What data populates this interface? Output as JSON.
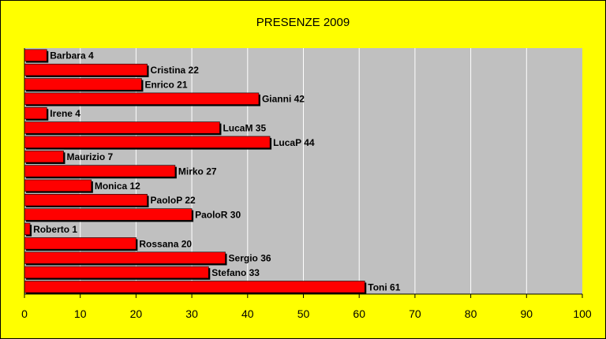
{
  "chart_data": {
    "type": "bar",
    "orientation": "horizontal",
    "title": "PRESENZE 2009",
    "xlabel": "",
    "ylabel": "",
    "xlim": [
      0,
      100
    ],
    "x_ticks": [
      "0",
      "10",
      "20",
      "30",
      "40",
      "50",
      "60",
      "70",
      "80",
      "90",
      "100"
    ],
    "grid": "vertical",
    "legend": "none",
    "categories": [
      "Barbara",
      "Cristina",
      "Enrico",
      "Gianni",
      "Irene",
      "LucaM",
      "LucaP",
      "Maurizio",
      "Mirko",
      "Monica",
      "PaoloP",
      "PaoloR",
      "Roberto",
      "Rossana",
      "Sergio",
      "Stefano",
      "Toni"
    ],
    "values": [
      4,
      22,
      21,
      42,
      4,
      35,
      44,
      7,
      27,
      12,
      22,
      30,
      1,
      20,
      36,
      33,
      61
    ],
    "data_labels": [
      "Barbara 4",
      "Cristina 22",
      "Enrico 21",
      "Gianni 42",
      "Irene 4",
      "LucaM 35",
      "LucaP 44",
      "Maurizio 7",
      "Mirko 27",
      "Monica 12",
      "PaoloP 22",
      "PaoloR 30",
      "Roberto 1",
      "Rossana 20",
      "Sergio 36",
      "Stefano 33",
      "Toni 61"
    ]
  },
  "colors": {
    "background": "#ffff00",
    "plot_area": "#c0c0c0",
    "bar_fill": "#ff0000",
    "bar_shadow": "#000000",
    "gridline": "#ffffff"
  }
}
